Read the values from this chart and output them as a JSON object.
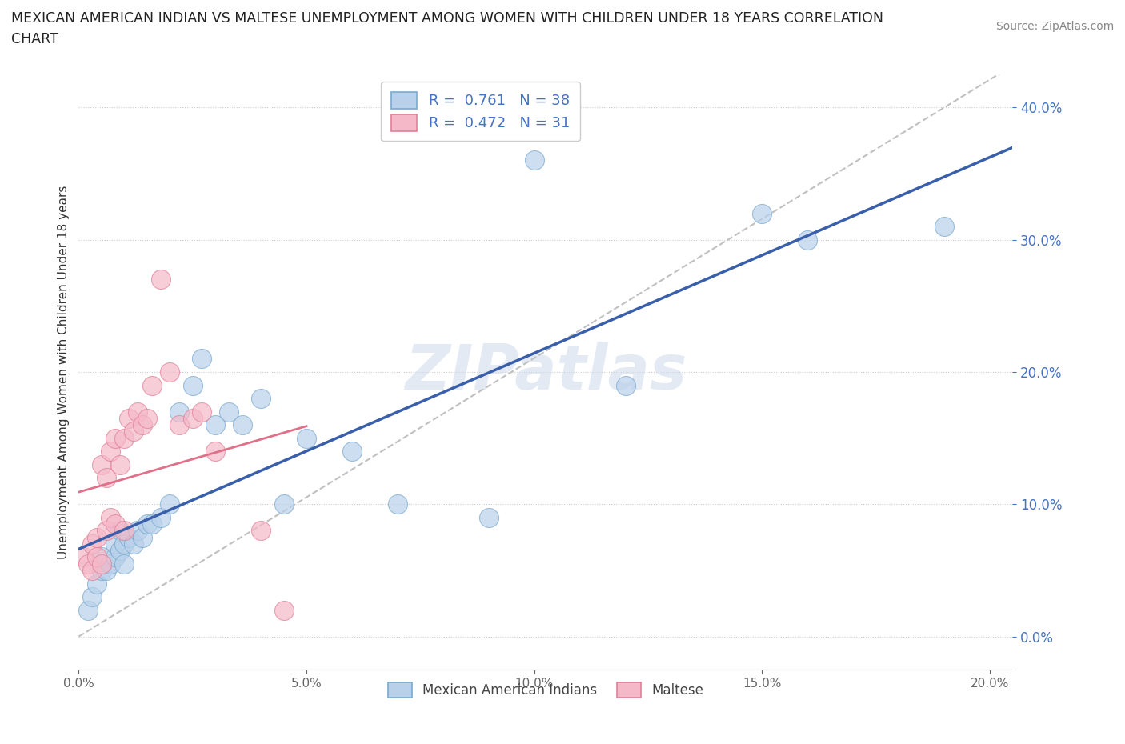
{
  "title_line1": "MEXICAN AMERICAN INDIAN VS MALTESE UNEMPLOYMENT AMONG WOMEN WITH CHILDREN UNDER 18 YEARS CORRELATION",
  "title_line2": "CHART",
  "source": "Source: ZipAtlas.com",
  "ylabel": "Unemployment Among Women with Children Under 18 years",
  "watermark": "ZIPatlas",
  "blue_R": 0.761,
  "blue_N": 38,
  "pink_R": 0.472,
  "pink_N": 31,
  "blue_scatter_color": "#b8d0ea",
  "blue_scatter_edge": "#7aaace",
  "pink_scatter_color": "#f5b8c8",
  "pink_scatter_edge": "#e08098",
  "blue_line_color": "#3a5faa",
  "pink_line_color": "#e0708a",
  "dash_line_color": "#c0c0c0",
  "ytick_color": "#4472c4",
  "xlim": [
    0.0,
    0.205
  ],
  "ylim": [
    -0.025,
    0.425
  ],
  "xticks": [
    0.0,
    0.05,
    0.1,
    0.15,
    0.2
  ],
  "yticks": [
    0.0,
    0.1,
    0.2,
    0.3,
    0.4
  ],
  "blue_x": [
    0.002,
    0.003,
    0.004,
    0.005,
    0.005,
    0.006,
    0.007,
    0.008,
    0.008,
    0.009,
    0.009,
    0.01,
    0.01,
    0.011,
    0.012,
    0.013,
    0.014,
    0.015,
    0.016,
    0.018,
    0.02,
    0.022,
    0.025,
    0.027,
    0.03,
    0.033,
    0.036,
    0.04,
    0.045,
    0.05,
    0.06,
    0.07,
    0.09,
    0.1,
    0.12,
    0.15,
    0.16,
    0.19
  ],
  "blue_y": [
    0.02,
    0.03,
    0.04,
    0.05,
    0.06,
    0.05,
    0.055,
    0.06,
    0.07,
    0.065,
    0.08,
    0.055,
    0.07,
    0.075,
    0.07,
    0.08,
    0.075,
    0.085,
    0.085,
    0.09,
    0.1,
    0.17,
    0.19,
    0.21,
    0.16,
    0.17,
    0.16,
    0.18,
    0.1,
    0.15,
    0.14,
    0.1,
    0.09,
    0.36,
    0.19,
    0.32,
    0.3,
    0.31
  ],
  "pink_x": [
    0.001,
    0.002,
    0.003,
    0.003,
    0.004,
    0.004,
    0.005,
    0.005,
    0.006,
    0.006,
    0.007,
    0.007,
    0.008,
    0.008,
    0.009,
    0.01,
    0.01,
    0.011,
    0.012,
    0.013,
    0.014,
    0.015,
    0.016,
    0.018,
    0.02,
    0.022,
    0.025,
    0.027,
    0.03,
    0.04,
    0.045
  ],
  "pink_y": [
    0.06,
    0.055,
    0.05,
    0.07,
    0.06,
    0.075,
    0.055,
    0.13,
    0.08,
    0.12,
    0.09,
    0.14,
    0.085,
    0.15,
    0.13,
    0.08,
    0.15,
    0.165,
    0.155,
    0.17,
    0.16,
    0.165,
    0.19,
    0.27,
    0.2,
    0.16,
    0.165,
    0.17,
    0.14,
    0.08,
    0.02
  ]
}
